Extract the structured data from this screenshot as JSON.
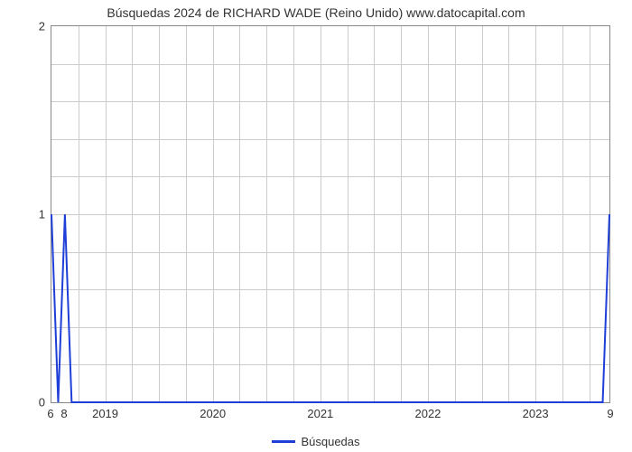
{
  "chart": {
    "type": "line",
    "title": "Búsquedas 2024 de RICHARD WADE (Reino Unido) www.datocapital.com",
    "title_fontsize": 14,
    "title_color": "#333333",
    "background_color": "#ffffff",
    "plot_border_color": "#888888",
    "grid_color": "#cccccc",
    "font_family": "Arial, sans-serif",
    "label_fontsize": 13,
    "label_color": "#333333",
    "series": {
      "name": "Búsquedas",
      "color": "#1e3fd8",
      "line_width": 2,
      "x": [
        6,
        7,
        8,
        9,
        10,
        11,
        12,
        13,
        14,
        15,
        16,
        17,
        18,
        19,
        20,
        21,
        22,
        23,
        24,
        25,
        26,
        27,
        28,
        29,
        30,
        31,
        32,
        33,
        34,
        35,
        36,
        37,
        38,
        39,
        40,
        41,
        42,
        43,
        44,
        45,
        46,
        47,
        48,
        49,
        50,
        51,
        52,
        53,
        54,
        55,
        56,
        57,
        58,
        59,
        60,
        61,
        62,
        63,
        64,
        65,
        66,
        67,
        68,
        69,
        70,
        71,
        72,
        73,
        74,
        75,
        76,
        77,
        78,
        79,
        80,
        81,
        82,
        83,
        84,
        85,
        86,
        87,
        88,
        89
      ],
      "y": [
        1,
        0,
        1,
        0,
        0,
        0,
        0,
        0,
        0,
        0,
        0,
        0,
        0,
        0,
        0,
        0,
        0,
        0,
        0,
        0,
        0,
        0,
        0,
        0,
        0,
        0,
        0,
        0,
        0,
        0,
        0,
        0,
        0,
        0,
        0,
        0,
        0,
        0,
        0,
        0,
        0,
        0,
        0,
        0,
        0,
        0,
        0,
        0,
        0,
        0,
        0,
        0,
        0,
        0,
        0,
        0,
        0,
        0,
        0,
        0,
        0,
        0,
        0,
        0,
        0,
        0,
        0,
        0,
        0,
        0,
        0,
        0,
        0,
        0,
        0,
        0,
        0,
        0,
        0,
        0,
        0,
        0,
        0,
        1
      ]
    },
    "x_axis": {
      "min": 6,
      "max": 89,
      "year_ticks": [
        {
          "label": "2019",
          "x": 14
        },
        {
          "label": "2020",
          "x": 30
        },
        {
          "label": "2021",
          "x": 46
        },
        {
          "label": "2022",
          "x": 62
        },
        {
          "label": "2023",
          "x": 78
        }
      ],
      "minor_grid_x": [
        10,
        14,
        18,
        22,
        26,
        30,
        34,
        38,
        42,
        46,
        50,
        54,
        58,
        62,
        66,
        70,
        74,
        78,
        82,
        86
      ],
      "left_corner_label": "6",
      "left_corner_label2": "8",
      "right_corner_label": "9"
    },
    "y_axis": {
      "min": 0,
      "max": 2,
      "ticks": [
        0,
        1,
        2
      ],
      "minor_grid_y": [
        0.2,
        0.4,
        0.6,
        0.8,
        1.0,
        1.2,
        1.4,
        1.6,
        1.8
      ]
    },
    "legend": {
      "label": "Búsquedas",
      "swatch_color": "#1e3fd8"
    }
  }
}
